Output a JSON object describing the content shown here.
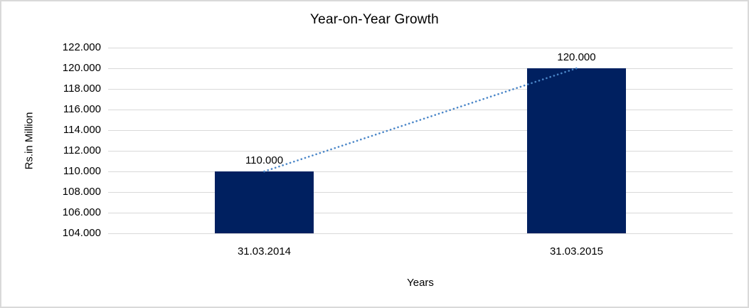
{
  "chart": {
    "title": "Year-on-Year Growth",
    "x_axis_title": "Years",
    "y_axis_title": "Rs.in Million"
  },
  "chart_data": {
    "type": "bar",
    "title": "Year-on-Year Growth",
    "xlabel": "Years",
    "ylabel": "Rs.in Million",
    "categories": [
      "31.03.2014",
      "31.03.2015"
    ],
    "values": [
      110000,
      120000
    ],
    "data_labels": [
      "110.000",
      "120.000"
    ],
    "ylim": [
      104000,
      122000
    ],
    "ytick_step": 2000,
    "ytick_labels": [
      "104.000",
      "106.000",
      "108.000",
      "110.000",
      "112.000",
      "114.000",
      "116.000",
      "118.000",
      "120.000",
      "122.000"
    ],
    "grid": true,
    "legend": false,
    "trendline": {
      "style": "dotted",
      "connects": [
        "31.03.2014",
        "31.03.2015"
      ],
      "from_value": 110000,
      "to_value": 120000
    }
  },
  "colors": {
    "bar": "#002060",
    "trendline": "#4a86c8",
    "gridline": "#d9d9d9",
    "border": "#d9d9d9",
    "text": "#000000",
    "background": "#ffffff"
  }
}
